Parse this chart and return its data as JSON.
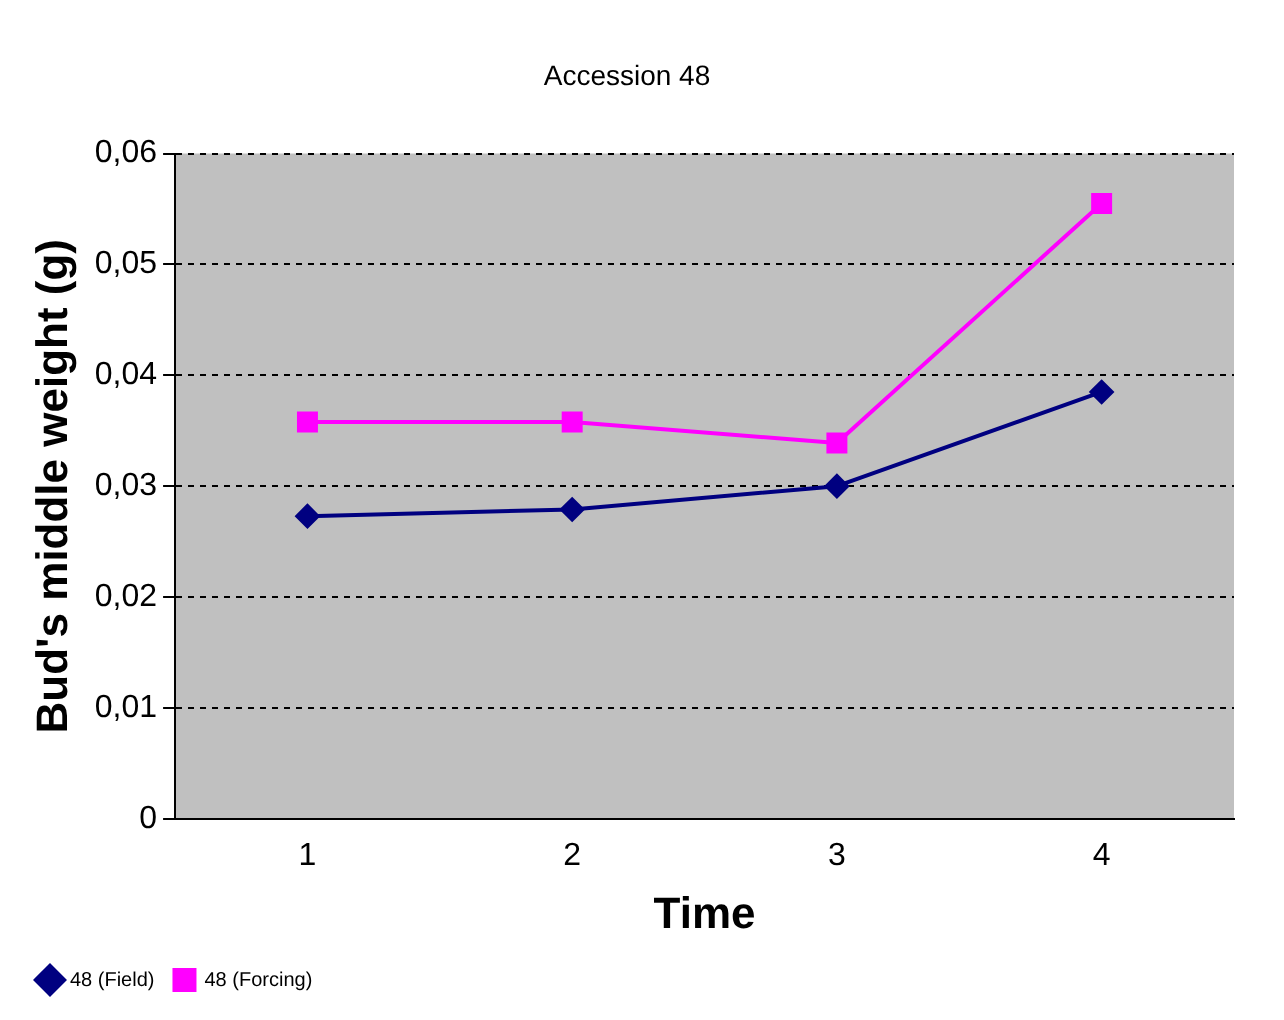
{
  "chart_data": {
    "type": "line",
    "title": "Accession 48",
    "xlabel": "Time",
    "ylabel": "Bud's middle weight (g)",
    "categories": [
      "1",
      "2",
      "3",
      "4"
    ],
    "series": [
      {
        "name": "48 (Field)",
        "color": "#000080",
        "marker": "diamond",
        "values": [
          0.0273,
          0.0279,
          0.03,
          0.0385
        ]
      },
      {
        "name": "48 (Forcing)",
        "color": "#ff00ff",
        "marker": "square",
        "values": [
          0.0358,
          0.0358,
          0.0339,
          0.0555
        ]
      }
    ],
    "ylim": [
      0,
      0.06
    ],
    "yticks": [
      {
        "value": 0,
        "label": "0"
      },
      {
        "value": 0.01,
        "label": "0,01"
      },
      {
        "value": 0.02,
        "label": "0,02"
      },
      {
        "value": 0.03,
        "label": "0,03"
      },
      {
        "value": 0.04,
        "label": "0,04"
      },
      {
        "value": 0.05,
        "label": "0,05"
      },
      {
        "value": 0.06,
        "label": "0,06"
      }
    ],
    "grid": "y",
    "legend": "bottom left",
    "line_style": "solid"
  }
}
